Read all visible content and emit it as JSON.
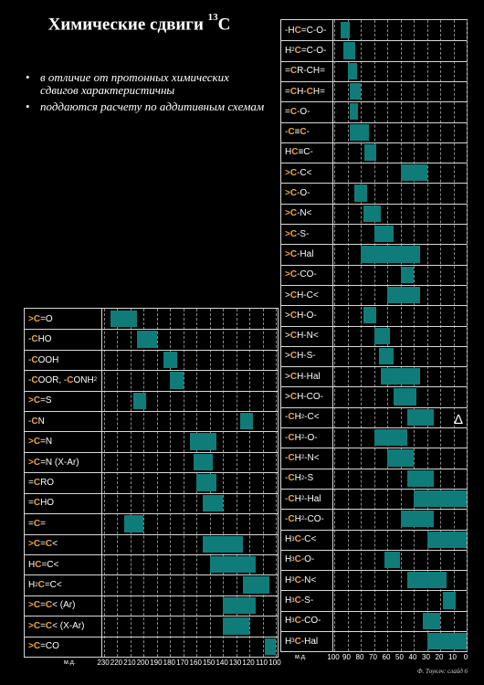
{
  "slide": {
    "title_text": "Химические сдвиги ",
    "title_isotope": "13",
    "title_element": "C",
    "bullets": [
      "в отличие от протонных химических сдвигов характеристичны",
      "поддаются расчету по аддитивным схемам"
    ],
    "delta_symbol": "Δ",
    "footer": "Ф. Тоуклч: слайд 6"
  },
  "colors": {
    "bar": "#0f7c79",
    "highlight": "#f0a63c",
    "border": "#d8d8d8",
    "background": "#000000"
  },
  "chart_data": [
    {
      "type": "bar",
      "orientation": "horizontal-range",
      "title": "",
      "xlabel": "м.д.",
      "xlim": [
        230,
        100
      ],
      "x_reversed": true,
      "ticks": [
        230,
        220,
        210,
        200,
        190,
        180,
        170,
        160,
        150,
        140,
        130,
        120,
        110,
        100
      ],
      "grid": true,
      "rows": [
        {
          "label": [
            [
              "hl",
              ">C"
            ],
            [
              "",
              "=O"
            ]
          ],
          "range": [
            225,
            205
          ]
        },
        {
          "label": [
            [
              "",
              "-"
            ],
            [
              "hl",
              "C"
            ],
            [
              "",
              "HO"
            ]
          ],
          "range": [
            205,
            190
          ]
        },
        {
          "label": [
            [
              "",
              "-"
            ],
            [
              "hl",
              "C"
            ],
            [
              "",
              "OOH"
            ]
          ],
          "range": [
            185,
            175
          ]
        },
        {
          "label": [
            [
              "",
              "-"
            ],
            [
              "hl",
              "C"
            ],
            [
              "",
              "OOR, -"
            ],
            [
              "hl",
              "C"
            ],
            [
              "",
              "ONH"
            ],
            [
              "sub",
              "2"
            ]
          ],
          "range": [
            180,
            170
          ]
        },
        {
          "label": [
            [
              "hl",
              ">C"
            ],
            [
              "",
              "=S"
            ]
          ],
          "range": [
            208,
            198
          ]
        },
        {
          "label": [
            [
              "",
              "-"
            ],
            [
              "hl",
              "C"
            ],
            [
              "",
              "N"
            ]
          ],
          "range": [
            127,
            117
          ]
        },
        {
          "label": [
            [
              "hl",
              ">C"
            ],
            [
              "",
              "=N"
            ]
          ],
          "range": [
            165,
            145
          ]
        },
        {
          "label": [
            [
              "hl",
              ">C"
            ],
            [
              "",
              "=N (X-Ar)"
            ]
          ],
          "range": [
            162,
            148
          ]
        },
        {
          "label": [
            [
              "",
              "="
            ],
            [
              "hl",
              "C"
            ],
            [
              "",
              "RO"
            ]
          ],
          "range": [
            160,
            145
          ]
        },
        {
          "label": [
            [
              "",
              "="
            ],
            [
              "hl",
              "C"
            ],
            [
              "",
              "HO"
            ]
          ],
          "range": [
            155,
            140
          ]
        },
        {
          "label": [
            [
              "",
              "="
            ],
            [
              "hl",
              "C"
            ],
            [
              "",
              "="
            ]
          ],
          "range": [
            215,
            200
          ]
        },
        {
          "label": [
            [
              "hl",
              ">C"
            ],
            [
              "",
              "="
            ],
            [
              "hl",
              "C"
            ],
            [
              "",
              "<"
            ]
          ],
          "range": [
            155,
            125
          ]
        },
        {
          "label": [
            [
              "",
              "H"
            ],
            [
              "hl",
              "C"
            ],
            [
              "",
              "=C<"
            ]
          ],
          "range": [
            150,
            115
          ]
        },
        {
          "label": [
            [
              "",
              "H"
            ],
            [
              "sub",
              "2"
            ],
            [
              "hl",
              "C"
            ],
            [
              "",
              "=C<"
            ]
          ],
          "range": [
            125,
            105
          ]
        },
        {
          "label": [
            [
              "hl",
              ">C"
            ],
            [
              "",
              "="
            ],
            [
              "hl",
              "C"
            ],
            [
              "",
              "< (Ar)"
            ]
          ],
          "range": [
            140,
            115
          ]
        },
        {
          "label": [
            [
              "hl",
              ">C"
            ],
            [
              "",
              "="
            ],
            [
              "hl",
              "C"
            ],
            [
              "",
              "< (X-Ar)"
            ]
          ],
          "range": [
            140,
            120
          ]
        },
        {
          "label": [
            [
              "hl",
              ">C"
            ],
            [
              "",
              "=CO"
            ]
          ],
          "range": [
            108,
            100
          ]
        }
      ]
    },
    {
      "type": "bar",
      "orientation": "horizontal-range",
      "title": "",
      "xlabel": "м.д.",
      "xlim": [
        100,
        0
      ],
      "x_reversed": true,
      "ticks": [
        100,
        90,
        80,
        70,
        60,
        50,
        40,
        30,
        20,
        10,
        0
      ],
      "grid": true,
      "rows": [
        {
          "label": [
            [
              "",
              "-H"
            ],
            [
              "hl",
              "C"
            ],
            [
              "",
              "=C-O-"
            ]
          ],
          "range": [
            95,
            88
          ]
        },
        {
          "label": [
            [
              "",
              "H"
            ],
            [
              "sub",
              "2"
            ],
            [
              "hl",
              "C"
            ],
            [
              "",
              "=C-O-"
            ]
          ],
          "range": [
            93,
            84
          ]
        },
        {
          "label": [
            [
              "",
              "="
            ],
            [
              "hl",
              "C"
            ],
            [
              "",
              "R-CH="
            ]
          ],
          "range": [
            90,
            83
          ]
        },
        {
          "label": [
            [
              "",
              "="
            ],
            [
              "hl",
              "C"
            ],
            [
              "",
              "H-"
            ],
            [
              "hl",
              "C"
            ],
            [
              "",
              "H="
            ]
          ],
          "range": [
            88,
            80
          ]
        },
        {
          "label": [
            [
              "",
              "="
            ],
            [
              "hl",
              "C"
            ],
            [
              "",
              "-O-"
            ]
          ],
          "range": [
            88,
            82
          ]
        },
        {
          "label": [
            [
              "",
              "-"
            ],
            [
              "hl",
              "C"
            ],
            [
              "",
              "≡"
            ],
            [
              "hl",
              "C"
            ],
            [
              "",
              "-"
            ]
          ],
          "range": [
            88,
            74
          ]
        },
        {
          "label": [
            [
              "",
              "H"
            ],
            [
              "hl",
              "C"
            ],
            [
              "",
              "≡C-"
            ]
          ],
          "range": [
            77,
            68
          ]
        },
        {
          "label": [
            [
              "hl",
              ">"
            ],
            [
              "hl",
              "C"
            ],
            [
              "",
              "-C<"
            ]
          ],
          "range": [
            50,
            30
          ]
        },
        {
          "label": [
            [
              "hl",
              ">"
            ],
            [
              "hl",
              "C"
            ],
            [
              "",
              "-O-"
            ]
          ],
          "range": [
            85,
            75
          ]
        },
        {
          "label": [
            [
              "hl",
              ">"
            ],
            [
              "hl",
              "C"
            ],
            [
              "",
              "-N<"
            ]
          ],
          "range": [
            78,
            65
          ]
        },
        {
          "label": [
            [
              "hl",
              ">"
            ],
            [
              "hl",
              "C"
            ],
            [
              "",
              "-S-"
            ]
          ],
          "range": [
            70,
            55
          ]
        },
        {
          "label": [
            [
              "hl",
              ">"
            ],
            [
              "hl",
              "C"
            ],
            [
              "",
              "-Hal"
            ]
          ],
          "range": [
            80,
            35
          ]
        },
        {
          "label": [
            [
              "hl",
              ">"
            ],
            [
              "hl",
              "C"
            ],
            [
              "",
              "-CO-"
            ]
          ],
          "range": [
            50,
            40
          ]
        },
        {
          "label": [
            [
              "",
              ">"
            ],
            [
              "hl",
              "C"
            ],
            [
              "",
              "H-C<"
            ]
          ],
          "range": [
            60,
            35
          ]
        },
        {
          "label": [
            [
              "",
              ">"
            ],
            [
              "hl",
              "C"
            ],
            [
              "",
              "H-O-"
            ]
          ],
          "range": [
            78,
            68
          ]
        },
        {
          "label": [
            [
              "",
              ">"
            ],
            [
              "hl",
              "C"
            ],
            [
              "",
              "H-N<"
            ]
          ],
          "range": [
            70,
            58
          ]
        },
        {
          "label": [
            [
              "",
              ">"
            ],
            [
              "hl",
              "C"
            ],
            [
              "",
              "H-S-"
            ]
          ],
          "range": [
            66,
            55
          ]
        },
        {
          "label": [
            [
              "",
              ">"
            ],
            [
              "hl",
              "C"
            ],
            [
              "",
              "H-Hal"
            ]
          ],
          "range": [
            65,
            35
          ]
        },
        {
          "label": [
            [
              "",
              ">"
            ],
            [
              "hl",
              "C"
            ],
            [
              "",
              "H-CO-"
            ]
          ],
          "range": [
            55,
            38
          ]
        },
        {
          "label": [
            [
              "",
              "-"
            ],
            [
              "hl",
              "C"
            ],
            [
              "",
              "H"
            ],
            [
              "sub",
              "2"
            ],
            [
              "",
              "-C<"
            ]
          ],
          "range": [
            45,
            25
          ]
        },
        {
          "label": [
            [
              "",
              "-"
            ],
            [
              "hl",
              "C"
            ],
            [
              "",
              "H"
            ],
            [
              "sub",
              "2"
            ],
            [
              "",
              "-O-"
            ]
          ],
          "range": [
            70,
            45
          ]
        },
        {
          "label": [
            [
              "",
              "-"
            ],
            [
              "hl",
              "C"
            ],
            [
              "",
              "H"
            ],
            [
              "sub",
              "2"
            ],
            [
              "",
              "-N<"
            ]
          ],
          "range": [
            60,
            40
          ]
        },
        {
          "label": [
            [
              "",
              "-"
            ],
            [
              "hl",
              "C"
            ],
            [
              "",
              "H"
            ],
            [
              "sub",
              "2"
            ],
            [
              "",
              "-S"
            ]
          ],
          "range": [
            45,
            25
          ]
        },
        {
          "label": [
            [
              "",
              "-"
            ],
            [
              "hl",
              "C"
            ],
            [
              "",
              "H"
            ],
            [
              "sub",
              "2"
            ],
            [
              "",
              "-Hal"
            ]
          ],
          "range": [
            40,
            0
          ]
        },
        {
          "label": [
            [
              "",
              "-"
            ],
            [
              "hl",
              "C"
            ],
            [
              "",
              "H"
            ],
            [
              "sub",
              "2"
            ],
            [
              "",
              "-CO-"
            ]
          ],
          "range": [
            50,
            25
          ]
        },
        {
          "label": [
            [
              "",
              "H"
            ],
            [
              "sub",
              "3"
            ],
            [
              "hl",
              "C"
            ],
            [
              "",
              "-C<"
            ]
          ],
          "range": [
            30,
            0
          ]
        },
        {
          "label": [
            [
              "",
              "H"
            ],
            [
              "sub",
              "3"
            ],
            [
              "hl",
              "C"
            ],
            [
              "",
              "-O-"
            ]
          ],
          "range": [
            62,
            50
          ]
        },
        {
          "label": [
            [
              "",
              "H"
            ],
            [
              "sub",
              "3"
            ],
            [
              "hl",
              "C"
            ],
            [
              "",
              "-N<"
            ]
          ],
          "range": [
            45,
            15
          ]
        },
        {
          "label": [
            [
              "",
              "H"
            ],
            [
              "sub",
              "3"
            ],
            [
              "hl",
              "C"
            ],
            [
              "",
              "-S-"
            ]
          ],
          "range": [
            18,
            8
          ]
        },
        {
          "label": [
            [
              "",
              "H"
            ],
            [
              "sub",
              "3"
            ],
            [
              "hl",
              "C"
            ],
            [
              "",
              "-CO-"
            ]
          ],
          "range": [
            33,
            20
          ]
        },
        {
          "label": [
            [
              "",
              "H"
            ],
            [
              "sub",
              "3"
            ],
            [
              "hl",
              "C"
            ],
            [
              "",
              "-Hal"
            ]
          ],
          "range": [
            30,
            0
          ]
        }
      ]
    }
  ]
}
